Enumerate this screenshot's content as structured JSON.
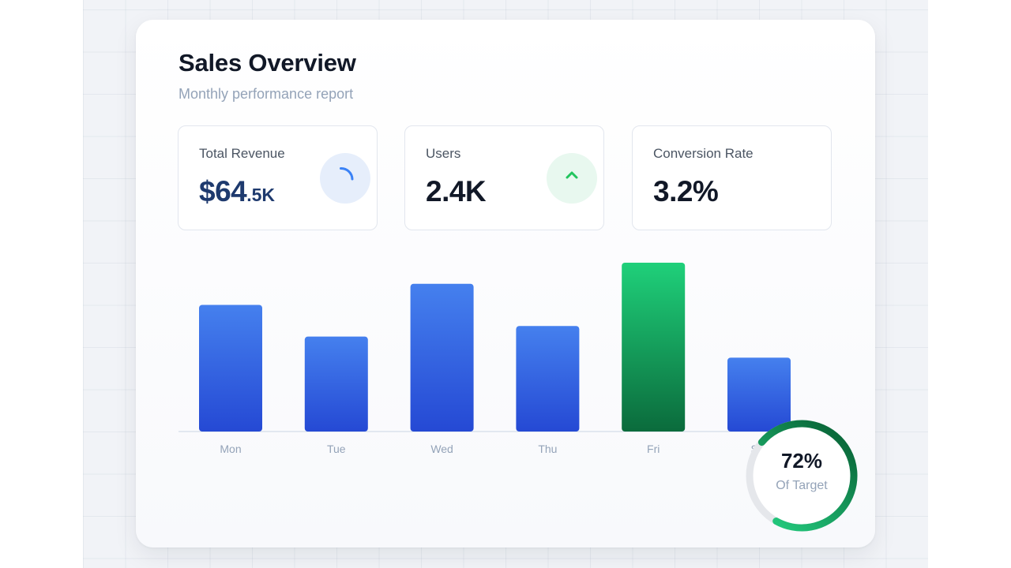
{
  "header": {
    "title": "Sales Overview",
    "subtitle": "Monthly performance report"
  },
  "stats": [
    {
      "label": "Total Revenue",
      "value_main": "$64",
      "value_suffix": ".5K",
      "icon": "loading-spinner-icon",
      "accent": "#3b82f6"
    },
    {
      "label": "Users",
      "value": "2.4K",
      "icon": "chevron-up-icon",
      "accent": "#22c55e"
    },
    {
      "label": "Conversion Rate",
      "value": "3.2%"
    }
  ],
  "chart_data": {
    "type": "bar",
    "categories": [
      "Mon",
      "Tue",
      "Wed",
      "Thu",
      "Fri",
      "Sat"
    ],
    "values": [
      60,
      45,
      70,
      50,
      80,
      35
    ],
    "highlight_category": "Fri",
    "ylim": [
      0,
      80
    ],
    "grid": false,
    "colors": {
      "bar": "#3b6fe0",
      "highlight": "#16a34a"
    }
  },
  "target": {
    "value": "72%",
    "label": "Of Target",
    "progress": 0.72,
    "colors": {
      "track": "#e5e7eb",
      "fill": "#16a34a"
    }
  },
  "colors": {
    "background": "#f1f3f7",
    "card": "#ffffff",
    "text_primary": "#111827",
    "text_muted": "#94a3b8"
  }
}
